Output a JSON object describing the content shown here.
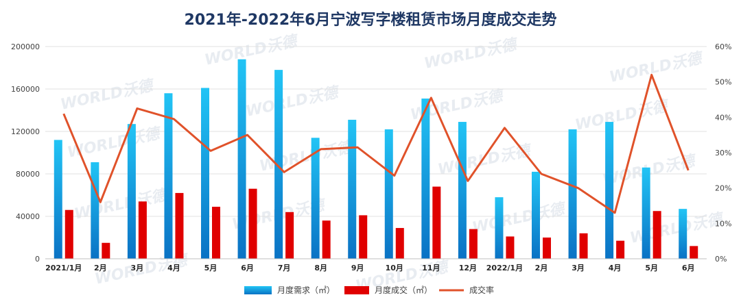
{
  "chart_data": {
    "type": "bar",
    "title": "2021年-2022年6月宁波写字楼租赁市场月度成交走势",
    "categories": [
      "2021/1月",
      "2月",
      "3月",
      "4月",
      "5月",
      "6月",
      "7月",
      "8月",
      "9月",
      "10月",
      "11月",
      "12月",
      "2022/1月",
      "2月",
      "3月",
      "4月",
      "5月",
      "6月"
    ],
    "series": [
      {
        "name": "月度需求（㎡）",
        "kind": "bar",
        "axis": "left",
        "color": "#1e9be0",
        "values": [
          112000,
          91000,
          127000,
          156000,
          161000,
          188000,
          178000,
          114000,
          131000,
          122000,
          151000,
          129000,
          58000,
          82000,
          122000,
          129000,
          86000,
          47000
        ]
      },
      {
        "name": "月度成交（㎡）",
        "kind": "bar",
        "axis": "left",
        "color": "#e00000",
        "values": [
          46000,
          15000,
          54000,
          62000,
          49000,
          66000,
          44000,
          36000,
          41000,
          29000,
          68000,
          28000,
          21000,
          20000,
          24000,
          17000,
          45000,
          12000
        ]
      },
      {
        "name": "成交率",
        "kind": "line",
        "axis": "right",
        "color": "#e0522a",
        "values": [
          41,
          16,
          42.5,
          39.5,
          30.5,
          35,
          24.5,
          31,
          31.5,
          23.5,
          45.5,
          22,
          37,
          24,
          20,
          13,
          52,
          25
        ]
      }
    ],
    "ylim_left": [
      0,
      200000
    ],
    "yticks_left": [
      "0",
      "40000",
      "80000",
      "120000",
      "160000",
      "200000"
    ],
    "ylim_right": [
      0,
      60
    ],
    "yticks_right": [
      "0%",
      "10%",
      "20%",
      "30%",
      "40%",
      "50%",
      "60%"
    ],
    "legend_position": "bottom",
    "watermark": "WORLD沃德"
  }
}
